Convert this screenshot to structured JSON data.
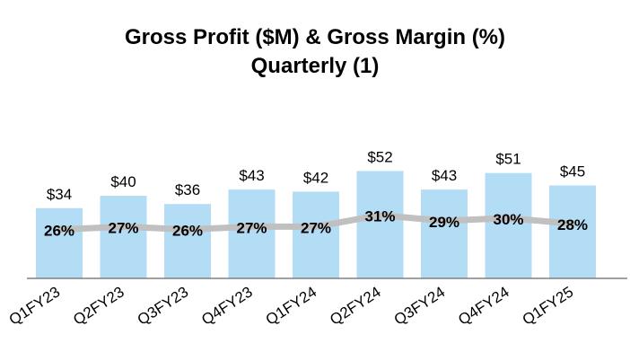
{
  "chart_data": {
    "type": "bar",
    "title_line1": "Gross Profit ($M) & Gross Margin (%)",
    "title_line2": "Quarterly (1)",
    "categories": [
      "Q1FY23",
      "Q2FY23",
      "Q3FY23",
      "Q4FY23",
      "Q1FY24",
      "Q2FY24",
      "Q3FY24",
      "Q4FY24",
      "Q1FY25"
    ],
    "series": [
      {
        "kind": "bar",
        "values": [
          34,
          40,
          36,
          43,
          42,
          52,
          43,
          51,
          45
        ],
        "labels": [
          "$34",
          "$40",
          "$36",
          "$43",
          "$42",
          "$52",
          "$43",
          "$51",
          "$45"
        ],
        "color": "#b3dcf5"
      },
      {
        "kind": "line",
        "values": [
          26,
          27,
          26,
          27,
          27,
          31,
          29,
          30,
          28
        ],
        "labels": [
          "26%",
          "27%",
          "26%",
          "27%",
          "27%",
          "31%",
          "29%",
          "30%",
          "28%"
        ],
        "color": "#c0c0c0"
      }
    ],
    "xlabel": "",
    "ylabel": "",
    "grid": false,
    "legend": "none"
  }
}
